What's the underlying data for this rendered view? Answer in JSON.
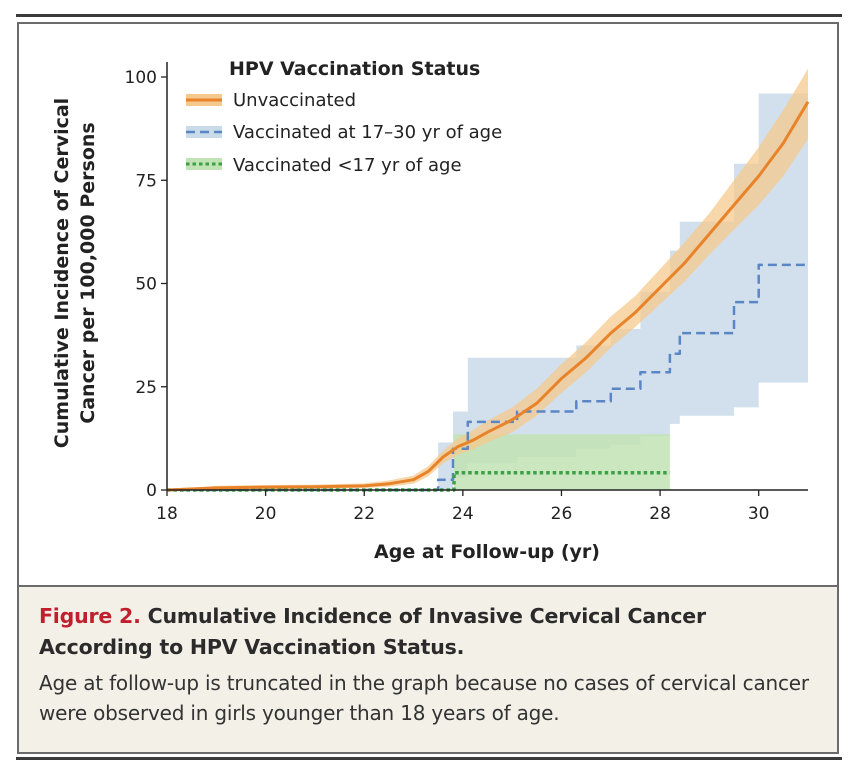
{
  "chart_data": {
    "type": "line",
    "ylabel_line1": "Cumulative Incidence of Cervical",
    "ylabel_line2": "Cancer per 100,000 Persons",
    "xlabel": "Age at Follow-up (yr)",
    "xlim": [
      18,
      31
    ],
    "ylim": [
      0,
      100
    ],
    "x_ticks": [
      18,
      20,
      22,
      24,
      26,
      28,
      30
    ],
    "y_ticks": [
      0,
      25,
      50,
      75,
      100
    ],
    "legend_title": "HPV Vaccination Status",
    "legend_position": "top-left",
    "series": [
      {
        "name": "Unvaccinated",
        "color": "#e8832a",
        "band_color": "#f5c98e",
        "style": "solid",
        "x": [
          18,
          19,
          20,
          21,
          22,
          22.5,
          23,
          23.3,
          23.6,
          23.9,
          24.2,
          24.5,
          25,
          25.5,
          26,
          26.5,
          27,
          27.5,
          28,
          28.5,
          29,
          29.5,
          30,
          30.5,
          31
        ],
        "y": [
          0,
          0.5,
          0.7,
          0.8,
          1.0,
          1.5,
          2.5,
          4.5,
          8,
          10.5,
          12,
          14,
          17,
          21,
          27,
          32,
          38,
          43,
          49,
          55,
          62,
          69,
          76,
          84,
          94
        ],
        "lower": [
          0,
          0,
          0.2,
          0.3,
          0.5,
          0.8,
          1.5,
          3.3,
          6.5,
          8.5,
          9.8,
          11.5,
          14,
          18,
          23.5,
          28.5,
          34.5,
          39.5,
          45,
          50.5,
          57,
          63,
          69,
          76,
          85
        ],
        "upper": [
          0,
          1.0,
          1.2,
          1.3,
          1.6,
          2.3,
          3.5,
          5.8,
          9.5,
          12.5,
          14.5,
          16.8,
          20,
          24.5,
          30.5,
          35.8,
          42,
          47,
          53.5,
          60,
          67,
          75,
          83,
          92,
          102
        ]
      },
      {
        "name": "Vaccinated at 17–30 yr of age",
        "color": "#5b86c6",
        "band_color": "#c9dbe9",
        "style": "dashed-step",
        "x": [
          18,
          23.5,
          23.8,
          24.1,
          25.1,
          26.3,
          27.0,
          27.6,
          28.2,
          28.4,
          29.5,
          30.0,
          31
        ],
        "y": [
          0,
          2.5,
          10,
          16.5,
          19,
          21.5,
          24.5,
          28.5,
          33,
          38,
          45.5,
          54.5,
          54.5
        ],
        "lower": [
          0,
          0,
          3,
          6.5,
          8,
          10,
          11,
          13,
          16,
          18,
          20,
          26,
          31
        ],
        "upper": [
          0,
          11.5,
          19,
          32,
          32,
          35,
          39,
          48,
          58,
          65,
          79,
          96,
          96
        ]
      },
      {
        "name": "Vaccinated <17 yr of age",
        "color": "#3ba046",
        "band_color": "#c2e3b4",
        "style": "dotted-step",
        "x": [
          18,
          23.72,
          23.82,
          28.2
        ],
        "y": [
          0,
          0,
          4.2,
          4.2
        ],
        "lower": [
          0,
          0,
          0,
          0
        ],
        "upper": [
          0,
          0,
          13.5,
          16
        ]
      }
    ]
  },
  "caption": {
    "figure_label": "Figure 2.",
    "title": "Cumulative Incidence of Invasive Cervical Cancer According to HPV Vaccination Status.",
    "body": "Age at follow-up is truncated in the graph because no cases of cervical cancer were observed in girls younger than 18 years of age."
  }
}
